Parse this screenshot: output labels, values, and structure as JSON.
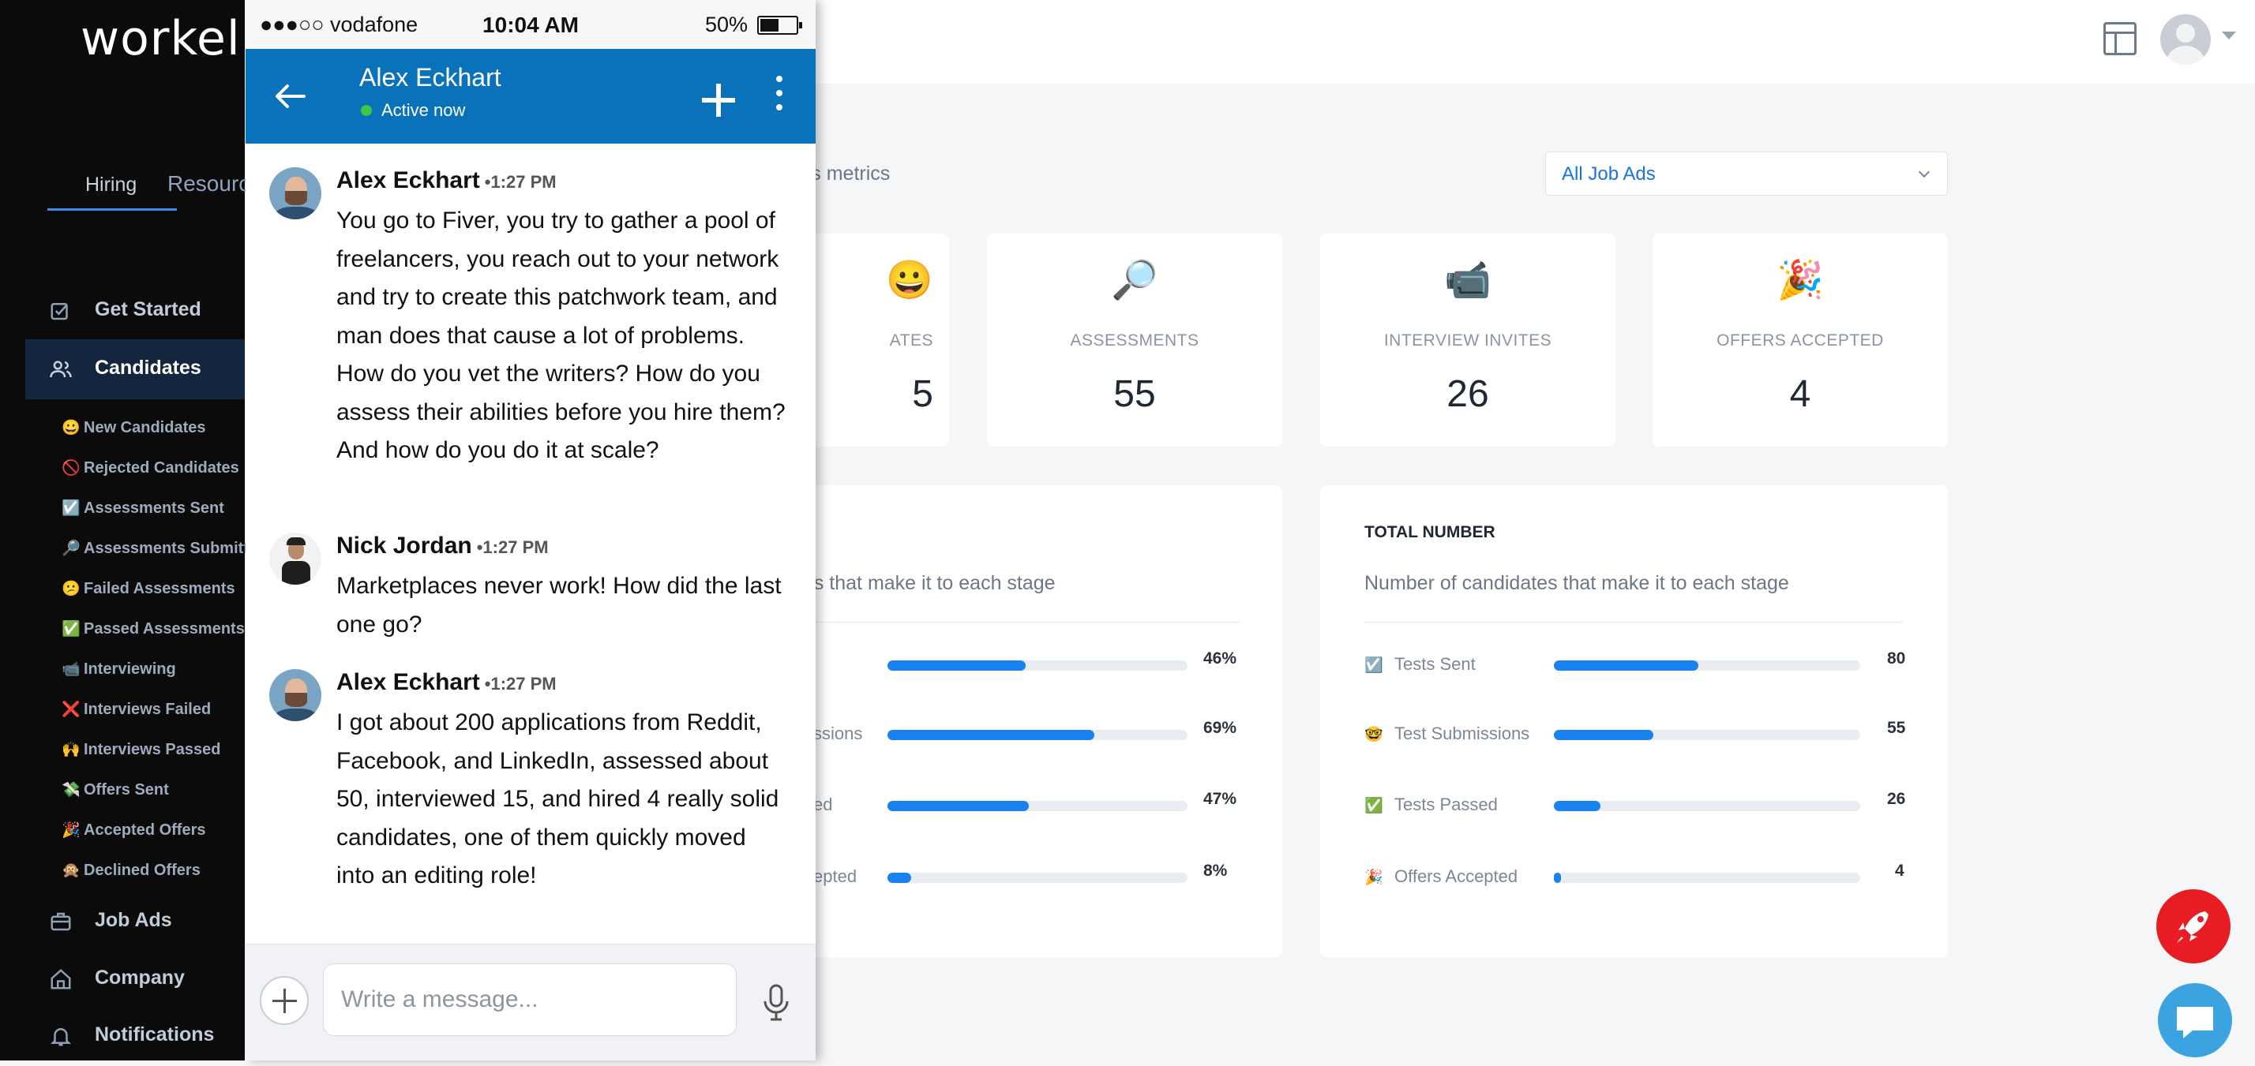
{
  "brand": "workell",
  "sidebar": {
    "tabs": [
      "Hiring",
      "Resources"
    ],
    "nav": {
      "get_started": "Get Started",
      "candidates": "Candidates",
      "job_ads": "Job Ads",
      "company": "Company",
      "notifications": "Notifications"
    },
    "sub_items": [
      {
        "emoji": "😀",
        "label": "New Candidates"
      },
      {
        "emoji": "🚫",
        "label": "Rejected Candidates"
      },
      {
        "emoji": "☑️",
        "label": "Assessments Sent"
      },
      {
        "emoji": "🔎",
        "label": "Assessments Submitted"
      },
      {
        "emoji": "😕",
        "label": "Failed Assessments"
      },
      {
        "emoji": "✅",
        "label": "Passed Assessments"
      },
      {
        "emoji": "📹",
        "label": "Interviewing"
      },
      {
        "emoji": "❌",
        "label": "Interviews Failed"
      },
      {
        "emoji": "🙌",
        "label": "Interviews Passed"
      },
      {
        "emoji": "💸",
        "label": "Offers Sent"
      },
      {
        "emoji": "🎉",
        "label": "Accepted Offers"
      },
      {
        "emoji": "🙊",
        "label": "Declined Offers"
      }
    ]
  },
  "main": {
    "metrics_subtitle": "y's metrics",
    "job_ads_select": "All Job Ads",
    "stats": [
      {
        "icon": "🔎",
        "label": "ASSESSMENTS",
        "value": "55"
      },
      {
        "icon": "📹",
        "label": "INTERVIEW INVITES",
        "value": "26"
      },
      {
        "icon": "🎉",
        "label": "OFFERS ACCEPTED",
        "value": "4"
      }
    ],
    "stat_partial": {
      "icon": "😀",
      "label": "ATES",
      "value": "5"
    },
    "percent_card": {
      "subtitle": "tes that make it to each stage",
      "rows": [
        {
          "label": "",
          "value": 46,
          "display": "46%"
        },
        {
          "label": "ssions",
          "value": 69,
          "display": "69%"
        },
        {
          "label": "ed",
          "value": 47,
          "display": "47%"
        },
        {
          "label": "epted",
          "value": 8,
          "display": "8%"
        }
      ]
    },
    "total_card": {
      "title": "TOTAL NUMBER",
      "subtitle": "Number of candidates that make it to each stage",
      "rows": [
        {
          "emoji": "☑️",
          "label": "Tests Sent",
          "value": 80,
          "display": "80"
        },
        {
          "emoji": "🤓",
          "label": "Test Submissions",
          "value": 55,
          "display": "55"
        },
        {
          "emoji": "✅",
          "label": "Tests Passed",
          "value": 26,
          "display": "26"
        },
        {
          "emoji": "🎉",
          "label": "Offers Accepted",
          "value": 4,
          "display": "4"
        }
      ],
      "max": 170
    }
  },
  "phone": {
    "status": {
      "carrier": "●●●○○ vodafone",
      "time": "10:04 AM",
      "battery": "50%",
      "battery_level": 0.5
    },
    "header": {
      "name": "Alex Eckhart",
      "status": "Active now"
    },
    "messages": [
      {
        "sender": "Alex Eckhart",
        "time": "•1:27 PM",
        "text": "You go to Fiver, you try to gather a pool of freelancers, you reach out to your network and try to create this patchwork team, and man does that cause a lot of problems. How do you vet the writers? How do you assess their abilities before you hire them? And how do you do it at scale?"
      },
      {
        "sender": "Nick Jordan",
        "time": "•1:27 PM",
        "text": "Marketplaces never work! How did the last one go?"
      },
      {
        "sender": "Alex Eckhart",
        "time": "•1:27 PM",
        "text": "I got about 200 applications from Reddit, Facebook, and LinkedIn, assessed about 50, interviewed 15, and hired 4 really solid candidates, one of them quickly moved into an editing role!"
      }
    ],
    "input_placeholder": "Write a message..."
  },
  "colors": {
    "sidebar_bg": "#0b0b0b",
    "accent": "#1a82f0",
    "phone_header": "#0a72bb",
    "rocket_fab": "#e91c24",
    "chat_fab": "#3ba3e0"
  }
}
